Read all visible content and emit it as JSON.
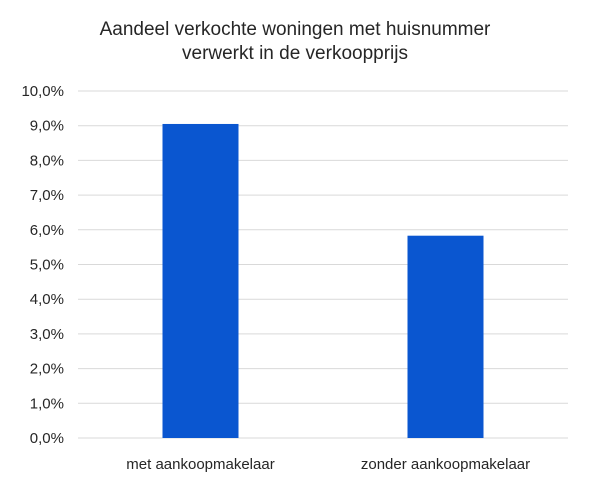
{
  "chart_data": {
    "type": "bar",
    "title_lines": [
      "Aandeel verkochte woningen met huisnummer",
      "verwerkt in de verkoopprijs"
    ],
    "categories": [
      "met aankoopmakelaar",
      "zonder aankoopmakelaar"
    ],
    "values": [
      9.05,
      5.83
    ],
    "unit": "%",
    "ylim": [
      0,
      10
    ],
    "yticks": [
      "0,0%",
      "1,0%",
      "2,0%",
      "3,0%",
      "4,0%",
      "5,0%",
      "6,0%",
      "7,0%",
      "8,0%",
      "9,0%",
      "10,0%"
    ],
    "grid": true,
    "legend": "none",
    "colors": {
      "bar": "#0a56d0",
      "grid": "#d9d9d9",
      "text": "#262626"
    }
  }
}
